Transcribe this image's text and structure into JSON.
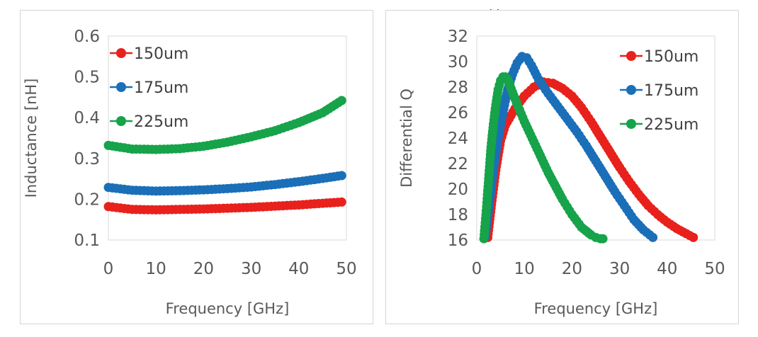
{
  "chart_data": [
    {
      "type": "scatter",
      "title": "",
      "xlabel": "Frequency [GHz]",
      "ylabel": "Inductance [nH]",
      "xlim": [
        0,
        50
      ],
      "ylim": [
        0.1,
        0.6
      ],
      "xticks": [
        "0",
        "10",
        "20",
        "30",
        "40",
        "50"
      ],
      "yticks": [
        "0.1",
        "0.2",
        "0.3",
        "0.4",
        "0.5",
        "0.6"
      ],
      "legend_position": "top-left",
      "grid": false,
      "series": [
        {
          "name": "150um",
          "color": "#e8211d",
          "x": [
            0,
            5,
            10,
            15,
            20,
            25,
            30,
            35,
            40,
            45,
            49
          ],
          "y": [
            0.182,
            0.175,
            0.174,
            0.175,
            0.176,
            0.178,
            0.18,
            0.183,
            0.186,
            0.19,
            0.193
          ]
        },
        {
          "name": "175um",
          "color": "#1b6fb8",
          "x": [
            0,
            5,
            10,
            15,
            20,
            25,
            30,
            35,
            40,
            45,
            49
          ],
          "y": [
            0.229,
            0.222,
            0.22,
            0.221,
            0.223,
            0.226,
            0.23,
            0.236,
            0.243,
            0.251,
            0.258
          ]
        },
        {
          "name": "225um",
          "color": "#16a34a",
          "x": [
            0,
            5,
            10,
            15,
            20,
            25,
            30,
            35,
            40,
            45,
            49
          ],
          "y": [
            0.332,
            0.323,
            0.322,
            0.324,
            0.33,
            0.34,
            0.353,
            0.368,
            0.388,
            0.412,
            0.442
          ]
        }
      ]
    },
    {
      "type": "scatter",
      "title": "",
      "xlabel": "Frequency [GHz]",
      "ylabel": "Differential Q",
      "xlim": [
        0,
        50
      ],
      "ylim": [
        16,
        32
      ],
      "xticks": [
        "0",
        "10",
        "20",
        "30",
        "40",
        "50"
      ],
      "yticks": [
        "16",
        "18",
        "20",
        "22",
        "24",
        "26",
        "28",
        "30",
        "32"
      ],
      "legend_position": "top-right",
      "grid": false,
      "series": [
        {
          "name": "150um",
          "color": "#e8211d",
          "x": [
            2.3,
            3,
            4,
            5,
            6,
            8,
            10,
            12,
            14,
            16,
            18,
            20,
            22,
            24,
            26,
            28,
            30,
            32,
            34,
            36,
            38,
            40,
            42,
            44,
            45.5
          ],
          "y": [
            16.2,
            18.5,
            21.5,
            23.8,
            25.0,
            26.3,
            27.3,
            28.0,
            28.4,
            28.3,
            27.9,
            27.3,
            26.4,
            25.3,
            24.1,
            22.9,
            21.7,
            20.6,
            19.6,
            18.7,
            18.0,
            17.4,
            16.9,
            16.5,
            16.2
          ]
        },
        {
          "name": "175um",
          "color": "#1b6fb8",
          "x": [
            1.8,
            2.5,
            3.5,
            4.5,
            5.5,
            6.5,
            7.5,
            8.5,
            9.5,
            10.5,
            11.5,
            13,
            15,
            17,
            19,
            21,
            23,
            25,
            27,
            29,
            31,
            33,
            35,
            37
          ],
          "y": [
            16.3,
            18.5,
            21.5,
            24.0,
            26.0,
            27.8,
            29.0,
            29.9,
            30.4,
            30.3,
            29.7,
            28.6,
            27.5,
            26.5,
            25.5,
            24.5,
            23.4,
            22.2,
            21.0,
            19.8,
            18.7,
            17.6,
            16.8,
            16.2
          ]
        },
        {
          "name": "225um",
          "color": "#16a34a",
          "x": [
            1.5,
            2,
            2.5,
            3,
            3.5,
            4,
            4.5,
            5,
            5.5,
            6,
            6.5,
            7,
            7.5,
            8,
            9,
            10,
            11,
            12,
            13,
            14,
            15,
            16,
            17,
            18,
            19,
            20,
            21,
            22,
            23,
            24,
            25,
            26,
            26.5
          ],
          "y": [
            16.1,
            18.3,
            20.8,
            23.3,
            25.1,
            26.6,
            27.8,
            28.5,
            28.8,
            28.8,
            28.6,
            28.1,
            27.6,
            27.1,
            26.2,
            25.3,
            24.5,
            23.7,
            22.9,
            22.1,
            21.3,
            20.6,
            19.9,
            19.2,
            18.6,
            18.0,
            17.5,
            17.0,
            16.7,
            16.4,
            16.2,
            16.1,
            16.1
          ]
        }
      ]
    }
  ],
  "top_fragment": ", ,"
}
